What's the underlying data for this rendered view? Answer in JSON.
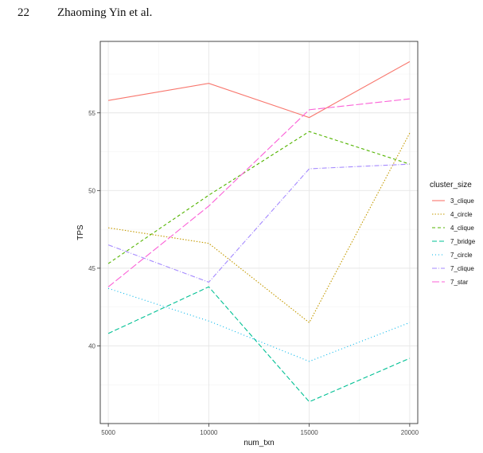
{
  "header": {
    "page_number": "22",
    "running_head": "Zhaoming Yin et al."
  },
  "chart_data": {
    "type": "line",
    "xlabel": "num_txn",
    "ylabel": "TPS",
    "x": [
      5000,
      10000,
      15000,
      20000
    ],
    "x_ticks": [
      5000,
      10000,
      15000,
      20000
    ],
    "y_ticks": [
      40,
      45,
      50,
      55
    ],
    "xlim": [
      4600,
      20400
    ],
    "ylim": [
      35.0,
      59.6
    ],
    "grid": true,
    "legend_title": "cluster_size",
    "legend_position": "right",
    "series": [
      {
        "name": "3_clique",
        "values": [
          55.8,
          56.9,
          54.7,
          58.3
        ],
        "color": "#F8766D",
        "dash": ""
      },
      {
        "name": "4_circle",
        "values": [
          47.6,
          46.6,
          41.5,
          53.7
        ],
        "color": "#C49A00",
        "dash": "1.5,2"
      },
      {
        "name": "4_clique",
        "values": [
          45.3,
          49.7,
          53.8,
          51.7
        ],
        "color": "#53B400",
        "dash": "4,3"
      },
      {
        "name": "7_bridge",
        "values": [
          40.8,
          43.8,
          36.4,
          39.2
        ],
        "color": "#00C094",
        "dash": "6,3"
      },
      {
        "name": "7_circle",
        "values": [
          43.7,
          41.6,
          39.0,
          41.5
        ],
        "color": "#00B6EB",
        "dash": "1,3"
      },
      {
        "name": "7_clique",
        "values": [
          46.5,
          44.1,
          51.4,
          51.7
        ],
        "color": "#A58AFF",
        "dash": "6,2,1,2"
      },
      {
        "name": "7_star",
        "values": [
          43.8,
          49.0,
          55.2,
          55.9
        ],
        "color": "#FB61D7",
        "dash": "9,3"
      }
    ]
  }
}
